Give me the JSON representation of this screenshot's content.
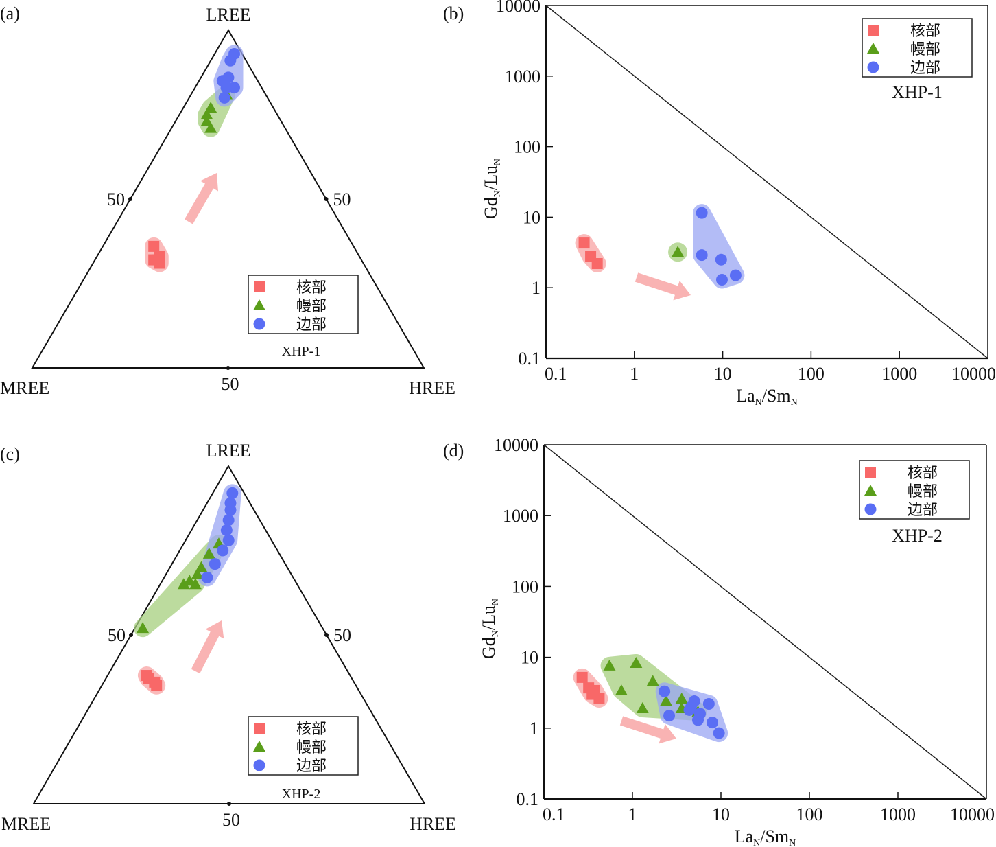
{
  "colors": {
    "core": "#f86868",
    "core_fill": "#f9a3a3",
    "mantle": "#5a9e1a",
    "mantle_fill": "#a6cf7e",
    "rim": "#5a6ef4",
    "rim_fill": "#9aa6f4",
    "arrow": "#f9b3b3"
  },
  "legend": {
    "core": "核部",
    "mantle": "幔部",
    "rim": "边部"
  },
  "chart_data": [
    {
      "panel_label": "(a)",
      "type": "scatter",
      "subtype": "ternary",
      "sample": "XHP-1",
      "vertices": {
        "top": "LREE",
        "left": "MREE",
        "right": "HREE"
      },
      "tick_labels": [
        "50",
        "50",
        "50"
      ],
      "legend_position": "bottom-right",
      "trend_arrow": "toward LREE apex",
      "series": [
        {
          "name": "核部",
          "marker": "square",
          "points": [
            {
              "LREE": 36,
              "MREE": 51,
              "HREE": 13
            },
            {
              "LREE": 32,
              "MREE": 53,
              "HREE": 15
            },
            {
              "LREE": 32,
              "MREE": 52,
              "HREE": 16
            },
            {
              "LREE": 31,
              "MREE": 52,
              "HREE": 17
            },
            {
              "LREE": 33,
              "MREE": 51,
              "HREE": 16
            }
          ]
        },
        {
          "name": "幔部",
          "marker": "triangle",
          "points": [
            {
              "LREE": 77,
              "MREE": 16,
              "HREE": 7
            },
            {
              "LREE": 75,
              "MREE": 18,
              "HREE": 7
            },
            {
              "LREE": 73,
              "MREE": 19,
              "HREE": 8
            },
            {
              "LREE": 71,
              "MREE": 19,
              "HREE": 10
            },
            {
              "LREE": 81,
              "MREE": 10,
              "HREE": 9
            }
          ]
        },
        {
          "name": "边部",
          "marker": "circle",
          "points": [
            {
              "LREE": 91,
              "MREE": 4,
              "HREE": 5
            },
            {
              "LREE": 93,
              "MREE": 2,
              "HREE": 5
            },
            {
              "LREE": 86,
              "MREE": 7,
              "HREE": 7
            },
            {
              "LREE": 83,
              "MREE": 9,
              "HREE": 8
            },
            {
              "LREE": 85,
              "MREE": 9,
              "HREE": 6
            },
            {
              "LREE": 83,
              "MREE": 7,
              "HREE": 10
            },
            {
              "LREE": 80,
              "MREE": 11,
              "HREE": 9
            }
          ]
        }
      ]
    },
    {
      "panel_label": "(b)",
      "type": "scatter",
      "sample": "XHP-1",
      "xlabel": "LaN/SmN",
      "ylabel": "GdN/LuN",
      "xscale": "log",
      "yscale": "log",
      "xlim": [
        0.1,
        10000
      ],
      "ylim": [
        0.1,
        10000
      ],
      "xticks": [
        "0.1",
        "1",
        "10",
        "100",
        "1000",
        "10000"
      ],
      "yticks": [
        "0.1",
        "1",
        "10",
        "100",
        "1000",
        "10000"
      ],
      "legend_position": "top-right",
      "reference_line": "1:1 diagonal from (0.1,10000) to (10000,0.1)",
      "trend_arrow": "toward increasing LaN/SmN, decreasing GdN/LuN",
      "series": [
        {
          "name": "核部",
          "marker": "square",
          "points": [
            [
              0.27,
              4.3
            ],
            [
              0.32,
              2.8
            ],
            [
              0.38,
              2.2
            ]
          ]
        },
        {
          "name": "幔部",
          "marker": "triangle",
          "points": [
            [
              3.1,
              3.2
            ]
          ]
        },
        {
          "name": "边部",
          "marker": "circle",
          "points": [
            [
              5.8,
              11.5
            ],
            [
              5.8,
              2.9
            ],
            [
              9.6,
              2.5
            ],
            [
              9.8,
              1.3
            ],
            [
              14,
              1.5
            ]
          ]
        }
      ]
    },
    {
      "panel_label": "(c)",
      "type": "scatter",
      "subtype": "ternary",
      "sample": "XHP-2",
      "vertices": {
        "top": "LREE",
        "left": "MREE",
        "right": "HREE"
      },
      "tick_labels": [
        "50",
        "50",
        "50"
      ],
      "legend_position": "bottom-right",
      "trend_arrow": "toward LREE apex",
      "series": [
        {
          "name": "核部",
          "marker": "square",
          "points": [
            {
              "LREE": 38,
              "MREE": 52,
              "HREE": 10
            },
            {
              "LREE": 37,
              "MREE": 52,
              "HREE": 11
            },
            {
              "LREE": 36,
              "MREE": 51,
              "HREE": 13
            },
            {
              "LREE": 35,
              "MREE": 51,
              "HREE": 14
            }
          ]
        },
        {
          "name": "幔部",
          "marker": "triangle",
          "points": [
            {
              "LREE": 52,
              "MREE": 46,
              "HREE": 2
            },
            {
              "LREE": 65,
              "MREE": 29,
              "HREE": 6
            },
            {
              "LREE": 66,
              "MREE": 27,
              "HREE": 7
            },
            {
              "LREE": 65,
              "MREE": 26,
              "HREE": 9
            },
            {
              "LREE": 68,
              "MREE": 24,
              "HREE": 8
            },
            {
              "LREE": 70,
              "MREE": 22,
              "HREE": 8
            },
            {
              "LREE": 74,
              "MREE": 18,
              "HREE": 8
            },
            {
              "LREE": 77,
              "MREE": 14,
              "HREE": 9
            }
          ]
        },
        {
          "name": "边部",
          "marker": "circle",
          "points": [
            {
              "LREE": 92,
              "MREE": 3,
              "HREE": 5
            },
            {
              "LREE": 89,
              "MREE": 5,
              "HREE": 6
            },
            {
              "LREE": 87,
              "MREE": 6,
              "HREE": 7
            },
            {
              "LREE": 84,
              "MREE": 8,
              "HREE": 8
            },
            {
              "LREE": 81,
              "MREE": 10,
              "HREE": 9
            },
            {
              "LREE": 78,
              "MREE": 11,
              "HREE": 11
            },
            {
              "LREE": 75,
              "MREE": 14,
              "HREE": 11
            },
            {
              "LREE": 71,
              "MREE": 18,
              "HREE": 11
            },
            {
              "LREE": 67,
              "MREE": 22,
              "HREE": 11
            }
          ]
        }
      ]
    },
    {
      "panel_label": "(d)",
      "type": "scatter",
      "sample": "XHP-2",
      "xlabel": "LaN/SmN",
      "ylabel": "GdN/LuN",
      "xscale": "log",
      "yscale": "log",
      "xlim": [
        0.1,
        10000
      ],
      "ylim": [
        0.1,
        10000
      ],
      "xticks": [
        "0.1",
        "1",
        "10",
        "100",
        "1000",
        "10000"
      ],
      "yticks": [
        "0.1",
        "1",
        "10",
        "100",
        "1000",
        "10000"
      ],
      "legend_position": "top-right",
      "reference_line": "1:1 diagonal from (0.1,10000) to (10000,0.1)",
      "trend_arrow": "toward increasing LaN/SmN, decreasing GdN/LuN",
      "series": [
        {
          "name": "核部",
          "marker": "square",
          "points": [
            [
              0.27,
              5.2
            ],
            [
              0.32,
              3.7
            ],
            [
              0.37,
              3.4
            ],
            [
              0.35,
              3.0
            ],
            [
              0.42,
              2.6
            ]
          ]
        },
        {
          "name": "幔部",
          "marker": "triangle",
          "points": [
            [
              0.55,
              7.6
            ],
            [
              1.1,
              8.3
            ],
            [
              0.75,
              3.4
            ],
            [
              1.7,
              4.6
            ],
            [
              1.3,
              1.9
            ],
            [
              2.4,
              2.4
            ],
            [
              3.6,
              2.6
            ],
            [
              3.6,
              1.9
            ],
            [
              5.5,
              1.7
            ]
          ]
        },
        {
          "name": "边部",
          "marker": "circle",
          "points": [
            [
              2.3,
              3.3
            ],
            [
              2.6,
              1.5
            ],
            [
              4.6,
              2.0
            ],
            [
              5.0,
              2.4
            ],
            [
              5.8,
              1.6
            ],
            [
              5.5,
              1.3
            ],
            [
              7.3,
              2.2
            ],
            [
              8.0,
              1.2
            ],
            [
              9.5,
              0.85
            ],
            [
              4.4,
              1.8
            ]
          ]
        }
      ]
    }
  ]
}
